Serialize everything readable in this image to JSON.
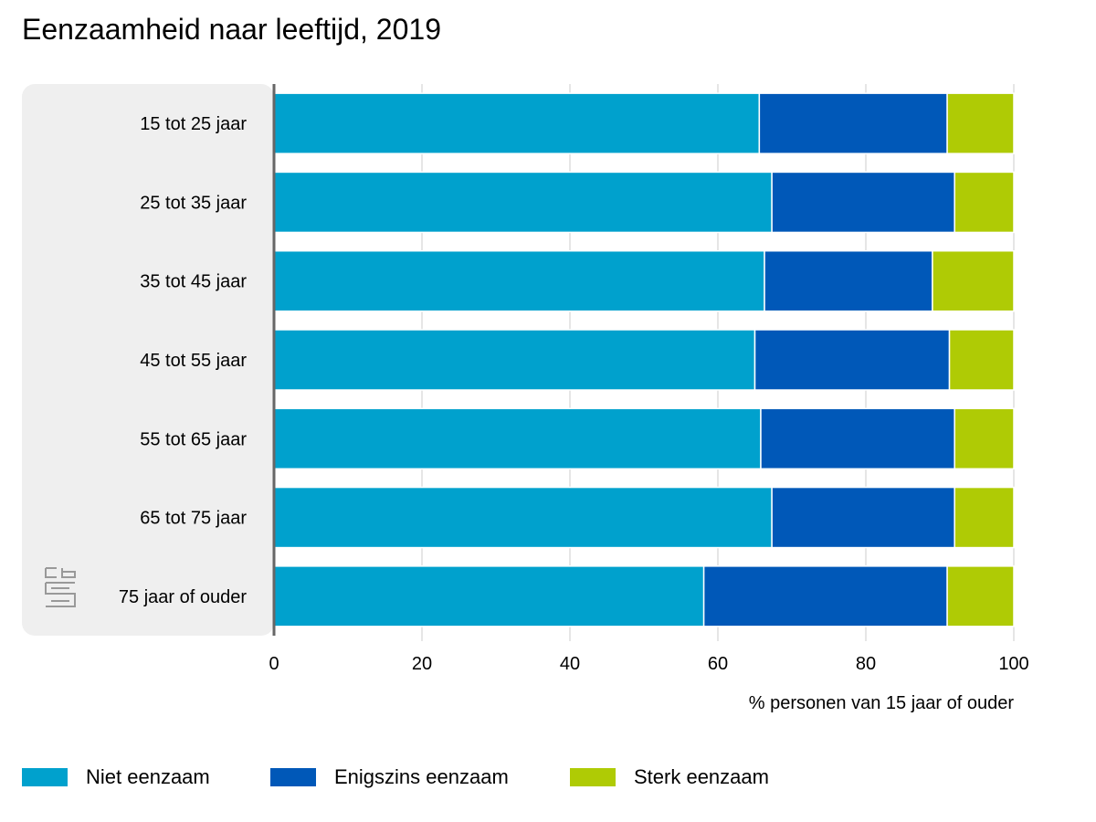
{
  "chart_data": {
    "type": "bar",
    "orientation": "horizontal",
    "stacked": true,
    "title": "Eenzaamheid naar leeftijd, 2019",
    "xlabel": "% personen van 15 jaar of ouder",
    "xlim": [
      0,
      100
    ],
    "xticks": [
      "0",
      "20",
      "40",
      "60",
      "80",
      "100"
    ],
    "categories": [
      "15 tot 25 jaar",
      "25 tot 35 jaar",
      "35 tot 45 jaar",
      "45 tot 55 jaar",
      "55 tot 65 jaar",
      "65 tot 75 jaar",
      "75 jaar of ouder"
    ],
    "series": [
      {
        "name": "Niet eenzaam",
        "color": "#00a1cd",
        "values": [
          65.6,
          67.3,
          66.3,
          65.0,
          65.8,
          67.3,
          58.1
        ]
      },
      {
        "name": "Enigszins eenzaam",
        "color": "#0058b8",
        "values": [
          25.4,
          24.7,
          22.7,
          26.3,
          26.2,
          24.7,
          32.9
        ]
      },
      {
        "name": "Sterk eenzaam",
        "color": "#afcb05",
        "values": [
          9.0,
          8.0,
          11.0,
          8.7,
          8.0,
          8.0,
          9.0
        ]
      }
    ],
    "grid": true,
    "legend": "bottom"
  },
  "logo": {
    "icon": "cbs-logo-icon",
    "text": "cbs"
  }
}
